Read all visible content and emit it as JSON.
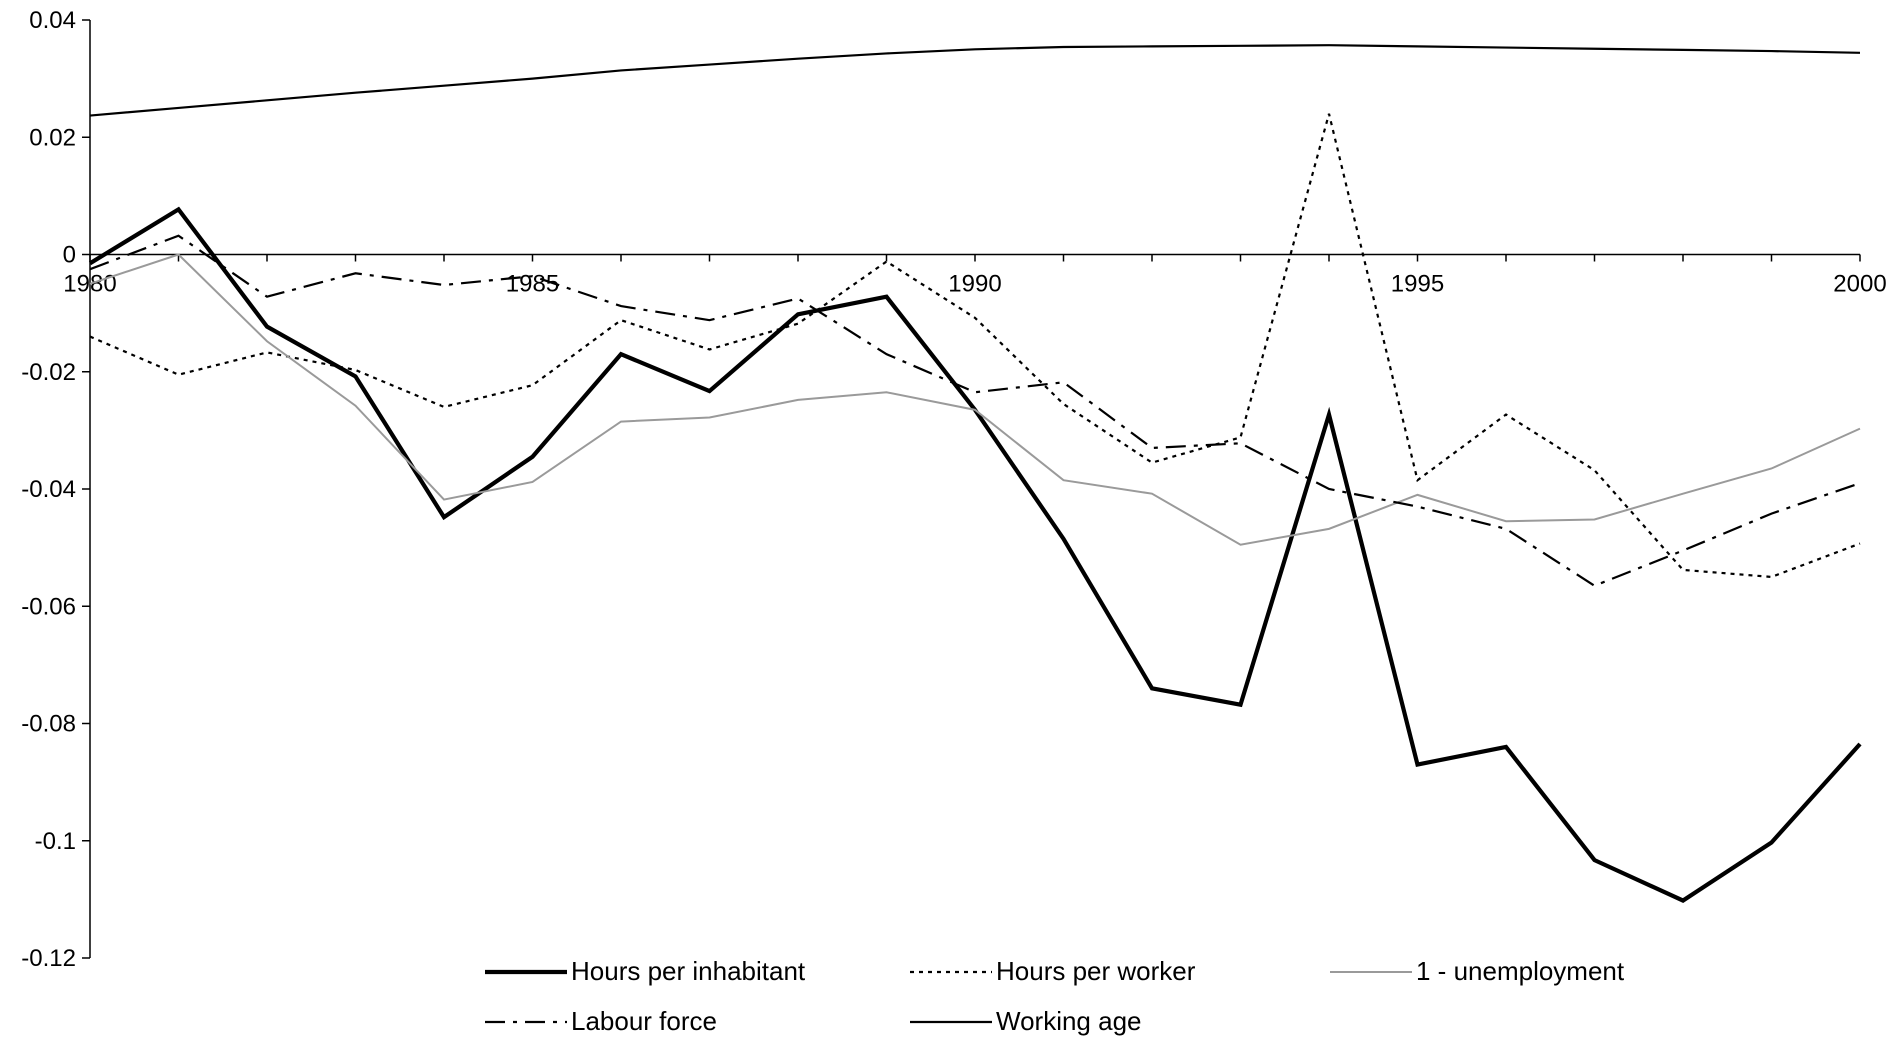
{
  "chart_data": {
    "type": "line",
    "title": "",
    "xlabel": "",
    "ylabel": "",
    "x": [
      1980,
      1981,
      1982,
      1983,
      1984,
      1985,
      1986,
      1987,
      1988,
      1989,
      1990,
      1991,
      1992,
      1993,
      1994,
      1995,
      1996,
      1997,
      1998,
      1999,
      2000
    ],
    "xlim": [
      1980,
      2000
    ],
    "ylim": [
      -0.12,
      0.04
    ],
    "x_ticks": [
      1980,
      1985,
      1990,
      1995,
      2000
    ],
    "x_tick_labels": [
      "1980",
      "1985",
      "1990",
      "1995",
      "2000"
    ],
    "y_ticks": [
      0.04,
      0.02,
      0,
      -0.02,
      -0.04,
      -0.06,
      -0.08,
      -0.1,
      -0.12
    ],
    "y_tick_labels": [
      "0.04",
      "0.02",
      "0",
      "-0.02",
      "-0.04",
      "-0.06",
      "-0.08",
      "-0.1",
      "-0.12"
    ],
    "grid": false,
    "legend_position": "bottom",
    "series": [
      {
        "name": "Hours per inhabitant",
        "style": "solid-thick",
        "color": "#000000",
        "values": [
          -0.0015,
          0.0077,
          -0.0123,
          -0.0208,
          -0.0448,
          -0.0345,
          -0.017,
          -0.0233,
          -0.0102,
          -0.0072,
          -0.0265,
          -0.0485,
          -0.074,
          -0.0768,
          -0.0273,
          -0.087,
          -0.084,
          -0.1033,
          -0.1102,
          -0.1003,
          -0.0835
        ]
      },
      {
        "name": "Hours per worker",
        "style": "dotted",
        "color": "#000000",
        "values": [
          -0.014,
          -0.0205,
          -0.0167,
          -0.0197,
          -0.026,
          -0.0223,
          -0.0112,
          -0.0162,
          -0.0118,
          -0.0012,
          -0.0108,
          -0.0255,
          -0.0355,
          -0.0312,
          0.024,
          -0.0385,
          -0.0273,
          -0.0368,
          -0.0538,
          -0.055,
          -0.0493
        ]
      },
      {
        "name": "1 - unemployment",
        "style": "solid-grey",
        "color": "#9a9a9a",
        "values": [
          -0.005,
          0.0,
          -0.0148,
          -0.0258,
          -0.0418,
          -0.0388,
          -0.0285,
          -0.0278,
          -0.0248,
          -0.0235,
          -0.0265,
          -0.0385,
          -0.0408,
          -0.0495,
          -0.0468,
          -0.041,
          -0.0455,
          -0.0452,
          -0.0408,
          -0.0365,
          -0.0297
        ]
      },
      {
        "name": "Labour force",
        "style": "dash-dot",
        "color": "#000000",
        "values": [
          -0.0025,
          0.0032,
          -0.0072,
          -0.0032,
          -0.0052,
          -0.0037,
          -0.0088,
          -0.0112,
          -0.0075,
          -0.017,
          -0.0235,
          -0.0218,
          -0.033,
          -0.0322,
          -0.04,
          -0.043,
          -0.0468,
          -0.0565,
          -0.0505,
          -0.0442,
          -0.039
        ]
      },
      {
        "name": "Working age",
        "style": "solid-thin",
        "color": "#000000",
        "values": [
          0.0237,
          0.025,
          0.0263,
          0.0276,
          0.0288,
          0.03,
          0.0314,
          0.0324,
          0.0334,
          0.0343,
          0.035,
          0.0354,
          0.0355,
          0.0356,
          0.0357,
          0.0355,
          0.0353,
          0.0351,
          0.0349,
          0.0347,
          0.0344
        ]
      }
    ]
  }
}
